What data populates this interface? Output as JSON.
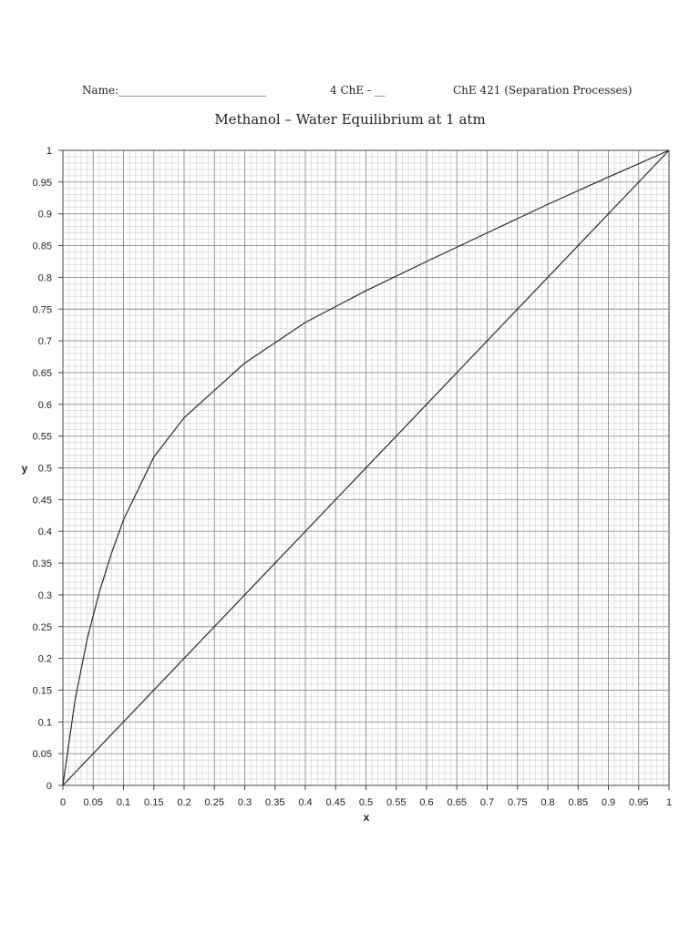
{
  "header": {
    "name_label": "Name:___________________________",
    "section_label": "4 ChE - __",
    "course_label": "ChE 421 (Separation Processes)"
  },
  "chart_data": {
    "type": "line",
    "title": "Methanol – Water Equilibrium at 1 atm",
    "xlabel": "x",
    "ylabel": "y",
    "xlim": [
      0,
      1
    ],
    "ylim": [
      0,
      1
    ],
    "grid": true,
    "x_ticks": [
      "0",
      "0.05",
      "0.1",
      "0.15",
      "0.2",
      "0.25",
      "0.3",
      "0.35",
      "0.4",
      "0.45",
      "0.5",
      "0.55",
      "0.6",
      "0.65",
      "0.7",
      "0.75",
      "0.8",
      "0.85",
      "0.9",
      "0.95",
      "1"
    ],
    "y_ticks": [
      "0",
      "0.05",
      "0.1",
      "0.15",
      "0.2",
      "0.25",
      "0.3",
      "0.35",
      "0.4",
      "0.45",
      "0.5",
      "0.55",
      "0.6",
      "0.65",
      "0.7",
      "0.75",
      "0.8",
      "0.85",
      "0.9",
      "0.95",
      "1"
    ],
    "series": [
      {
        "x": [
          0,
          0.02,
          0.04,
          0.06,
          0.08,
          0.1,
          0.15,
          0.2,
          0.3,
          0.4,
          0.5,
          0.6,
          0.7,
          0.8,
          0.9,
          0.95,
          1.0
        ],
        "y": [
          0,
          0.134,
          0.23,
          0.304,
          0.365,
          0.418,
          0.517,
          0.579,
          0.665,
          0.729,
          0.779,
          0.825,
          0.87,
          0.915,
          0.958,
          0.979,
          1.0
        ]
      },
      {
        "x": [
          0,
          1
        ],
        "y": [
          0,
          1
        ]
      }
    ]
  }
}
